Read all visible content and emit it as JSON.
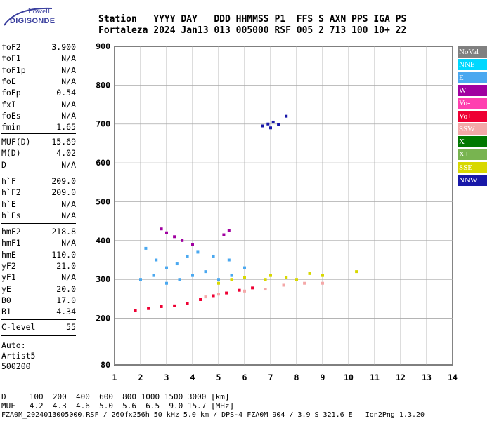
{
  "logo": {
    "top": "Lowell",
    "main": "DIGISONDE"
  },
  "header": {
    "line1": "Station   YYYY DAY   DDD HHMMSS P1  FFS S AXN PPS IGA PS",
    "line2": "Fortaleza 2024 Jan13 013 005000 RSF 005 2 713 100 10+ 22"
  },
  "params_group1": [
    {
      "k": "foF2",
      "v": "3.900"
    },
    {
      "k": "foF1",
      "v": "N/A"
    },
    {
      "k": "foF1p",
      "v": "N/A"
    },
    {
      "k": "foE",
      "v": "N/A"
    },
    {
      "k": "foEp",
      "v": "0.54"
    },
    {
      "k": "fxI",
      "v": "N/A"
    },
    {
      "k": "foEs",
      "v": "N/A"
    },
    {
      "k": "fmin",
      "v": "1.65"
    }
  ],
  "params_group2": [
    {
      "k": "MUF(D)",
      "v": "15.69"
    },
    {
      "k": "M(D)",
      "v": "4.02"
    },
    {
      "k": "D",
      "v": "N/A"
    }
  ],
  "params_group3": [
    {
      "k": "h`F",
      "v": "209.0"
    },
    {
      "k": "h`F2",
      "v": "209.0"
    },
    {
      "k": "h`E",
      "v": "N/A"
    },
    {
      "k": "h`Es",
      "v": "N/A"
    }
  ],
  "params_group4": [
    {
      "k": "hmF2",
      "v": "218.8"
    },
    {
      "k": "hmF1",
      "v": "N/A"
    },
    {
      "k": "hmE",
      "v": "110.0"
    },
    {
      "k": "yF2",
      "v": "21.0"
    },
    {
      "k": "yF1",
      "v": "N/A"
    },
    {
      "k": "yE",
      "v": "20.0"
    },
    {
      "k": "B0",
      "v": "17.0"
    },
    {
      "k": "B1",
      "v": "4.34"
    }
  ],
  "params_group5": [
    {
      "k": "C-level",
      "v": "55"
    }
  ],
  "auto": {
    "line1": "Auto:",
    "line2": "Artist5",
    "line3": "500200"
  },
  "legend": [
    {
      "label": "NoVal",
      "color": "#808080"
    },
    {
      "label": "NNE",
      "color": "#00d8ff"
    },
    {
      "label": "E",
      "color": "#4aa8f0"
    },
    {
      "label": "W",
      "color": "#a000a0"
    },
    {
      "label": "Vo-",
      "color": "#ff40b0"
    },
    {
      "label": "Vo+",
      "color": "#ee0033"
    },
    {
      "label": "SSW",
      "color": "#f4a8a8"
    },
    {
      "label": "X-",
      "color": "#007800"
    },
    {
      "label": "X+",
      "color": "#78b450"
    },
    {
      "label": "SSE",
      "color": "#d8d800"
    },
    {
      "label": "NNW",
      "color": "#1818a8"
    }
  ],
  "footer": {
    "d_line": "D     100  200  400  600  800 1000 1500 3000 [km]",
    "muf_line": "MUF   4.2  4.3  4.6  5.0  5.6  6.5  9.0 15.7 [MHz]",
    "file_line": "FZA0M_2024013005000.RSF / 260fx256h 50 kHz 5.0 km / DPS-4 FZA0M 904 / 3.9 S 321.6 E   Ion2Png 1.3.20"
  },
  "chart_data": {
    "type": "scatter",
    "xlim": [
      1,
      14
    ],
    "ylim": [
      80,
      900
    ],
    "x_ticks": [
      1,
      2,
      3,
      4,
      5,
      6,
      7,
      8,
      9,
      10,
      11,
      12,
      13,
      14
    ],
    "y_ticks": [
      80,
      200,
      300,
      400,
      500,
      600,
      700,
      800,
      900
    ],
    "grid": true,
    "legend_position": "right",
    "series": [
      {
        "name": "NNW",
        "points": [
          [
            6.9,
            700
          ],
          [
            7.0,
            690
          ],
          [
            7.1,
            705
          ],
          [
            7.6,
            720
          ],
          [
            7.3,
            698
          ],
          [
            6.7,
            695
          ]
        ]
      },
      {
        "name": "E",
        "points": [
          [
            2.2,
            380
          ],
          [
            2.6,
            350
          ],
          [
            3.0,
            330
          ],
          [
            3.4,
            340
          ],
          [
            3.8,
            360
          ],
          [
            4.2,
            370
          ],
          [
            4.8,
            360
          ],
          [
            5.4,
            350
          ],
          [
            6.0,
            330
          ],
          [
            2.0,
            300
          ],
          [
            2.5,
            310
          ],
          [
            3.0,
            290
          ],
          [
            3.5,
            300
          ],
          [
            4.0,
            310
          ],
          [
            4.5,
            320
          ],
          [
            5.0,
            300
          ],
          [
            5.5,
            310
          ]
        ]
      },
      {
        "name": "W",
        "points": [
          [
            2.8,
            430
          ],
          [
            3.0,
            420
          ],
          [
            3.3,
            410
          ],
          [
            3.6,
            400
          ],
          [
            4.0,
            390
          ],
          [
            5.2,
            415
          ],
          [
            5.4,
            425
          ]
        ]
      },
      {
        "name": "Vo+",
        "points": [
          [
            1.8,
            220
          ],
          [
            2.3,
            225
          ],
          [
            2.8,
            230
          ],
          [
            3.3,
            232
          ],
          [
            3.8,
            238
          ],
          [
            4.3,
            248
          ],
          [
            4.8,
            258
          ],
          [
            5.3,
            265
          ],
          [
            5.8,
            272
          ],
          [
            6.3,
            278
          ]
        ]
      },
      {
        "name": "SSE",
        "points": [
          [
            5.0,
            290
          ],
          [
            5.5,
            300
          ],
          [
            6.0,
            305
          ],
          [
            6.8,
            300
          ],
          [
            7.0,
            310
          ],
          [
            7.6,
            305
          ],
          [
            8.0,
            300
          ],
          [
            8.5,
            315
          ],
          [
            9.0,
            310
          ],
          [
            10.3,
            320
          ]
        ]
      },
      {
        "name": "SSW",
        "points": [
          [
            4.5,
            255
          ],
          [
            5.0,
            262
          ],
          [
            6.0,
            270
          ],
          [
            6.8,
            275
          ],
          [
            7.5,
            285
          ],
          [
            8.3,
            290
          ],
          [
            9.0,
            290
          ]
        ]
      }
    ]
  }
}
